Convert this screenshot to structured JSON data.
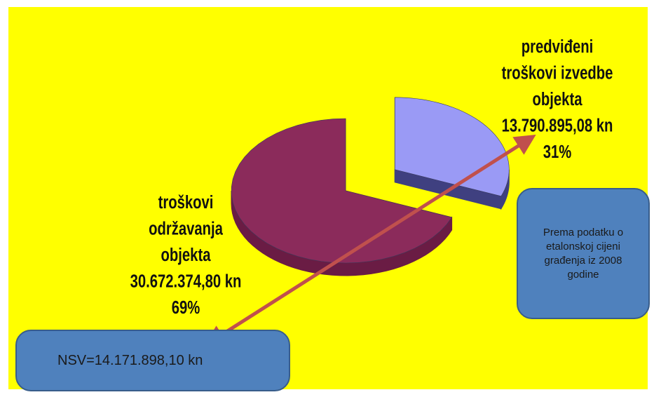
{
  "chart_data": {
    "type": "pie",
    "categories": [
      "predviđeni\ntroškovi izvedbe\nobjekta",
      "troškovi\nodržavanja\nobjekta"
    ],
    "values": [
      31,
      69
    ],
    "value_labels": [
      "31%",
      "69%"
    ],
    "amount_labels": [
      "13.790.895,08 kn",
      "30.672.374,80 kn"
    ],
    "colors": [
      "#9a9af5",
      "#8b2b5b"
    ],
    "side_colors": [
      "#3f4080",
      "#6a1c44"
    ],
    "exploded": 0,
    "note": "Prema podatku o etalonskoj cijeni građenja iz 2008 godine",
    "nsv": "NSV=14.171.898,10 kn"
  }
}
